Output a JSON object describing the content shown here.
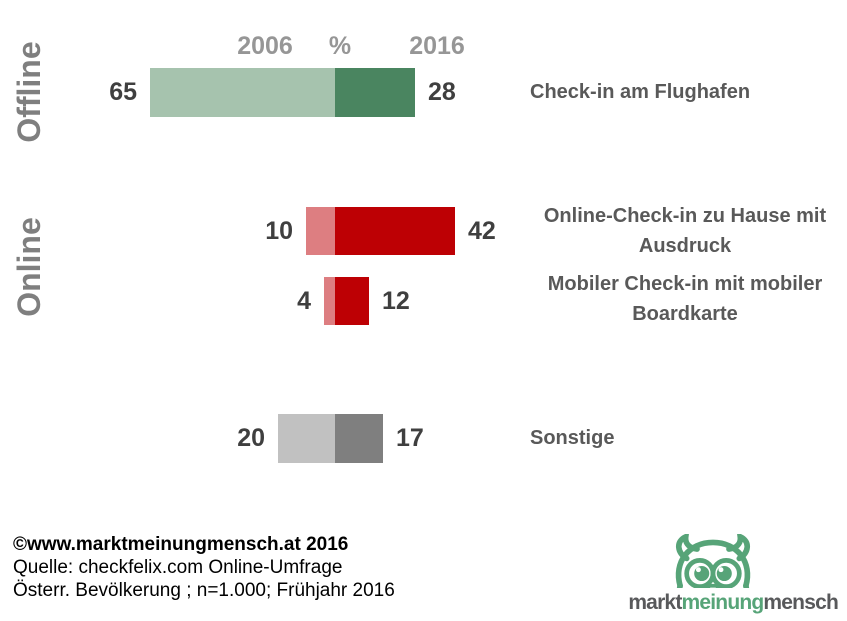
{
  "header": {
    "year_left": "2006",
    "unit": "%",
    "year_right": "2016"
  },
  "group_labels": {
    "offline": "Offline",
    "online": "Online"
  },
  "chart_data": {
    "type": "bar",
    "orientation": "horizontal",
    "layout": "back-to-back pairs: 2006 bar extends left from a shared center axis, 2016 bar extends right; values shown as labels at the outer bar ends",
    "unit": "%",
    "legend_position": "top (year captions 2006 / % / 2016 above bars)",
    "grid": false,
    "value_range": [
      0,
      65
    ],
    "series": [
      {
        "name": "2006"
      },
      {
        "name": "2016"
      }
    ],
    "categories": [
      "Check-in am Flughafen",
      "Online-Check-in zu Hause mit Ausdruck",
      "Mobiler Check-in mit mobiler Boardkarte",
      "Sonstige"
    ],
    "rows": [
      {
        "label": "Check-in am Flughafen",
        "label_lines": [
          "Check-in am Flughafen"
        ],
        "group": "Offline",
        "values": {
          "2006": 65,
          "2016": 28
        },
        "colors": {
          "2006": "#a6c3ae",
          "2016": "#4a8560"
        }
      },
      {
        "label": "Online-Check-in zu Hause mit Ausdruck",
        "label_lines": [
          "Online-Check-in zu Hause mit",
          "Ausdruck"
        ],
        "group": "Online",
        "values": {
          "2006": 10,
          "2016": 42
        },
        "colors": {
          "2006": "#dd7e81",
          "2016": "#bd0004"
        }
      },
      {
        "label": "Mobiler Check-in mit mobiler Boardkarte",
        "label_lines": [
          "Mobiler Check-in mit mobiler",
          "Boardkarte"
        ],
        "group": "Online",
        "values": {
          "2006": 4,
          "2016": 12
        },
        "colors": {
          "2006": "#dd7e81",
          "2016": "#bd0004"
        }
      },
      {
        "label": "Sonstige",
        "label_lines": [
          "Sonstige"
        ],
        "group": "",
        "values": {
          "2006": 20,
          "2016": 17
        },
        "colors": {
          "2006": "#c1c1c1",
          "2016": "#7f7f7f"
        }
      }
    ]
  },
  "footer": {
    "copyright": "©www.marktmeinungmensch.at 2016",
    "source": "Quelle: checkfelix.com Online-Umfrage",
    "sample": "Österr. Bevölkerung ; n=1.000; Frühjahr 2016"
  },
  "logo": {
    "owl_color": "#57a478",
    "words": [
      {
        "text": "markt",
        "color": "#58595b"
      },
      {
        "text": "meinung",
        "color": "#57a478"
      },
      {
        "text": "mensch",
        "color": "#58595b"
      }
    ]
  },
  "colors": {
    "header_gray": "#969696",
    "group_label_gray": "#7f7f7f",
    "value_text": "#3f3f3f",
    "category_text": "#595959",
    "background": "#ffffff"
  }
}
